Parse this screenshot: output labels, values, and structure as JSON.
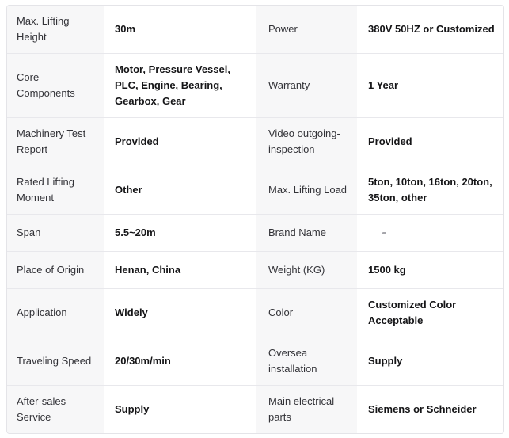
{
  "colors": {
    "label_cell_bg": "#f7f7f8",
    "value_cell_bg": "#ffffff",
    "border": "#e4e4e8",
    "label_text": "#333338",
    "value_text": "#151517"
  },
  "spec_table": {
    "rows": [
      {
        "label1": "Max. Lifting Height",
        "value1": "30m",
        "label2": "Power",
        "value2": "380V 50HZ or Customized",
        "value2_redacted_mark": false
      },
      {
        "label1": "Core Components",
        "value1": "Motor, Pressure Vessel, PLC, Engine, Bearing, Gearbox, Gear",
        "label2": "Warranty",
        "value2": "1 Year",
        "value2_redacted_mark": false
      },
      {
        "label1": "Machinery Test Report",
        "value1": "Provided",
        "label2": "Video outgoing-inspection",
        "value2": "Provided",
        "value2_redacted_mark": false
      },
      {
        "label1": "Rated Lifting Moment",
        "value1": "Other",
        "label2": "Max. Lifting Load",
        "value2": "5ton, 10ton, 16ton, 20ton, 35ton, other",
        "value2_redacted_mark": false
      },
      {
        "label1": "Span",
        "value1": "5.5~20m",
        "label2": "Brand Name",
        "value2": "",
        "value2_redacted_mark": true
      },
      {
        "label1": "Place of Origin",
        "value1": "Henan, China",
        "label2": "Weight (KG)",
        "value2": "1500 kg",
        "value2_redacted_mark": false
      },
      {
        "label1": "Application",
        "value1": "Widely",
        "label2": "Color",
        "value2": "Customized Color Acceptable",
        "value2_redacted_mark": false
      },
      {
        "label1": "Traveling Speed",
        "value1": "20/30m/min",
        "label2": "Oversea installation",
        "value2": "Supply",
        "value2_redacted_mark": false
      },
      {
        "label1": "After-sales Service",
        "value1": "Supply",
        "label2": "Main electrical parts",
        "value2": "Siemens or Schneider",
        "value2_redacted_mark": false
      }
    ]
  }
}
